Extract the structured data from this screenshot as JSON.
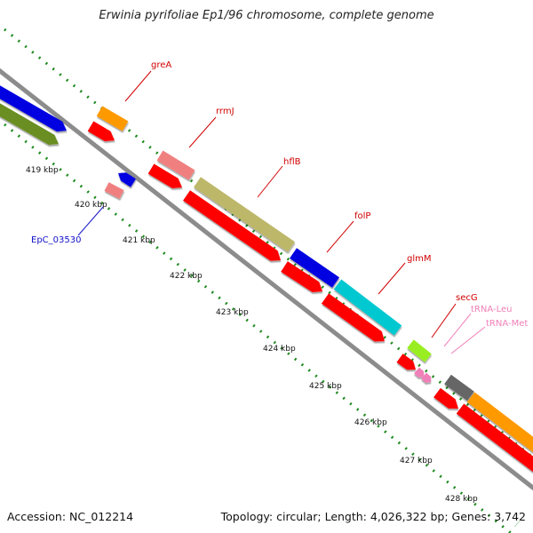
{
  "header": {
    "title": "Erwinia pyrifoliae Ep1/96 chromosome, complete genome"
  },
  "footer": {
    "accession": "Accession: NC_012214",
    "topology": "Topology: circular; Length: 4,026,322 bp; Genes: 3,742"
  },
  "ruler": {
    "ticks": [
      "419 kbp",
      "420 kbp",
      "421 kbp",
      "422 kbp",
      "423 kbp",
      "424 kbp",
      "425 kbp",
      "426 kbp",
      "427 kbp",
      "428 kbp"
    ]
  },
  "genes": [
    {
      "name": "greA",
      "color": "#d10000"
    },
    {
      "name": "rrmJ",
      "color": "#d10000"
    },
    {
      "name": "hflB",
      "color": "#d10000"
    },
    {
      "name": "folP",
      "color": "#d10000"
    },
    {
      "name": "glmM",
      "color": "#d10000"
    },
    {
      "name": "secG",
      "color": "#d10000"
    },
    {
      "name": "tRNA-Leu",
      "color": "#f080b8"
    },
    {
      "name": "tRNA-Met",
      "color": "#f080b8"
    },
    {
      "name": "EpC_03530",
      "color": "#1010c8"
    }
  ],
  "colors": {
    "backbone": "#8c8c8c",
    "ticks": "#1f8a1f",
    "cds_forward": "#ff0000",
    "orange": "#ff9900",
    "pink": "#f08080",
    "khaki": "#bdb76b",
    "blue": "#0000e0",
    "cyan": "#00c8d0",
    "lime": "#99ee22",
    "gray": "#666666",
    "olive": "#6b8e23"
  }
}
